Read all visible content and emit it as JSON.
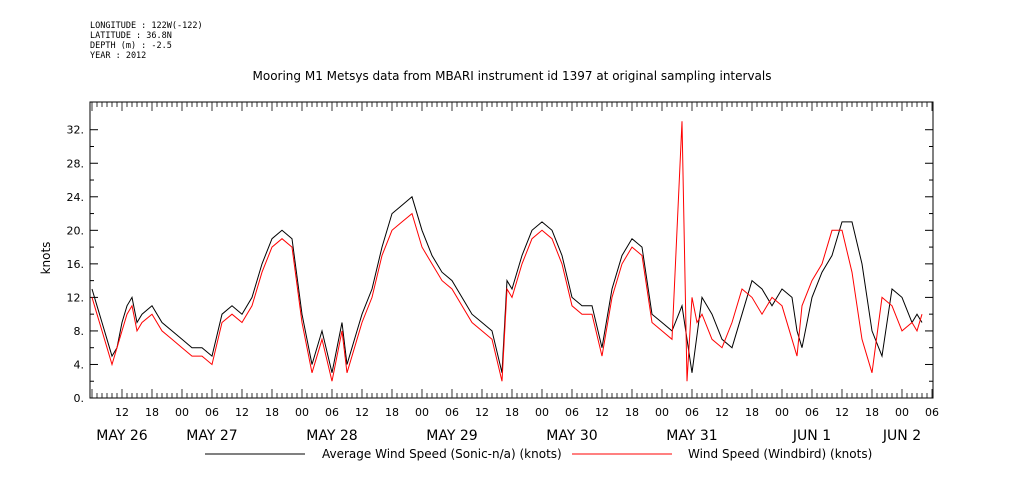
{
  "meta": {
    "longitude": "LONGITUDE : 122W(-122)",
    "latitude": "LATITUDE : 36.8N",
    "depth": "DEPTH (m) : -2.5",
    "year": "YEAR : 2012"
  },
  "chart_data": {
    "type": "line",
    "title": "Mooring M1 Metsys data from MBARI instrument id 1397 at original sampling intervals",
    "ylabel": "knots",
    "xlabel": "",
    "ylim": [
      0,
      34
    ],
    "xlim": [
      0,
      166
    ],
    "x_unit_note": "hours after MAY 26 06:00",
    "y_ticks": [
      0,
      4,
      8,
      12,
      16,
      20,
      24,
      28,
      32
    ],
    "y_tick_labels": [
      "0.",
      "4.",
      "8.",
      "12.",
      "16.",
      "20.",
      "24.",
      "28.",
      "32."
    ],
    "x_hour_ticks": [
      {
        "label": "12",
        "x": 6
      },
      {
        "label": "18",
        "x": 12
      },
      {
        "label": "00",
        "x": 18
      },
      {
        "label": "06",
        "x": 24
      },
      {
        "label": "12",
        "x": 30
      },
      {
        "label": "18",
        "x": 36
      },
      {
        "label": "00",
        "x": 42
      },
      {
        "label": "06",
        "x": 48
      },
      {
        "label": "12",
        "x": 54
      },
      {
        "label": "18",
        "x": 60
      },
      {
        "label": "00",
        "x": 66
      },
      {
        "label": "06",
        "x": 72
      },
      {
        "label": "12",
        "x": 78
      },
      {
        "label": "18",
        "x": 84
      },
      {
        "label": "00",
        "x": 90
      },
      {
        "label": "06",
        "x": 96
      },
      {
        "label": "12",
        "x": 102
      },
      {
        "label": "18",
        "x": 108
      },
      {
        "label": "00",
        "x": 114
      },
      {
        "label": "06",
        "x": 120
      },
      {
        "label": "12",
        "x": 126
      },
      {
        "label": "18",
        "x": 132
      },
      {
        "label": "00",
        "x": 138
      },
      {
        "label": "06",
        "x": 144
      },
      {
        "label": "12",
        "x": 150
      },
      {
        "label": "18",
        "x": 156
      },
      {
        "label": "00",
        "x": 162
      },
      {
        "label": "06",
        "x": 168
      }
    ],
    "x_day_labels": [
      {
        "label": "MAY 26",
        "x": 6
      },
      {
        "label": "MAY 27",
        "x": 24
      },
      {
        "label": "MAY 28",
        "x": 48
      },
      {
        "label": "MAY 29",
        "x": 72
      },
      {
        "label": "MAY 30",
        "x": 96
      },
      {
        "label": "MAY 31",
        "x": 120
      },
      {
        "label": "JUN  1",
        "x": 144
      },
      {
        "label": "JUN  2",
        "x": 162
      }
    ],
    "legend": [
      {
        "name": "Average Wind Speed (Sonic-n/a) (knots)",
        "color": "#000000"
      },
      {
        "name": "Wind Speed (Windbird) (knots)",
        "color": "#ff0000"
      }
    ],
    "series": [
      {
        "name": "Average Wind Speed (Sonic-n/a) (knots)",
        "color": "#000000",
        "x": [
          0,
          1,
          2,
          3,
          4,
          5,
          6,
          7,
          8,
          9,
          10,
          12,
          14,
          16,
          18,
          20,
          22,
          24,
          26,
          28,
          30,
          32,
          34,
          36,
          38,
          40,
          42,
          44,
          46,
          48,
          50,
          51,
          52,
          53,
          54,
          56,
          58,
          60,
          62,
          64,
          66,
          68,
          70,
          72,
          74,
          76,
          78,
          80,
          82,
          83,
          84,
          86,
          88,
          90,
          92,
          94,
          96,
          98,
          100,
          102,
          104,
          106,
          108,
          110,
          112,
          114,
          116,
          118,
          120,
          122,
          124,
          126,
          128,
          130,
          132,
          134,
          136,
          138,
          140,
          141,
          142,
          144,
          146,
          148,
          150,
          152,
          154,
          156,
          158,
          160,
          162,
          164,
          165,
          166
        ],
        "values": [
          13,
          11,
          9,
          7,
          5,
          6,
          9,
          11,
          12,
          9,
          10,
          11,
          9,
          8,
          7,
          6,
          6,
          5,
          10,
          11,
          10,
          12,
          16,
          19,
          20,
          19,
          10,
          4,
          8,
          3,
          9,
          4,
          6,
          8,
          10,
          13,
          18,
          22,
          23,
          24,
          20,
          17,
          15,
          14,
          12,
          10,
          9,
          8,
          3,
          14,
          13,
          17,
          20,
          21,
          20,
          17,
          12,
          11,
          11,
          6,
          13,
          17,
          19,
          18,
          10,
          9,
          8,
          11,
          3,
          12,
          10,
          7,
          6,
          10,
          14,
          13,
          11,
          13,
          12,
          8,
          6,
          12,
          15,
          17,
          21,
          21,
          16,
          8,
          5,
          13,
          12,
          9,
          10,
          9
        ]
      },
      {
        "name": "Wind Speed (Windbird) (knots)",
        "color": "#ff0000",
        "x": [
          0,
          1,
          2,
          3,
          4,
          5,
          6,
          7,
          8,
          9,
          10,
          12,
          14,
          16,
          18,
          20,
          22,
          24,
          26,
          28,
          30,
          32,
          34,
          36,
          38,
          40,
          42,
          44,
          46,
          48,
          50,
          51,
          52,
          53,
          54,
          56,
          58,
          60,
          62,
          64,
          66,
          68,
          70,
          72,
          74,
          76,
          78,
          80,
          82,
          83,
          84,
          86,
          88,
          90,
          92,
          94,
          96,
          98,
          100,
          102,
          104,
          106,
          108,
          110,
          112,
          114,
          116,
          118,
          119,
          120,
          121,
          122,
          124,
          126,
          128,
          130,
          132,
          134,
          136,
          138,
          140,
          141,
          142,
          144,
          146,
          148,
          150,
          152,
          154,
          156,
          158,
          160,
          162,
          164,
          165,
          166
        ],
        "values": [
          12,
          10,
          8,
          6,
          4,
          6,
          8,
          10,
          11,
          8,
          9,
          10,
          8,
          7,
          6,
          5,
          5,
          4,
          9,
          10,
          9,
          11,
          15,
          18,
          19,
          18,
          9,
          3,
          7,
          2,
          8,
          3,
          5,
          7,
          9,
          12,
          17,
          20,
          21,
          22,
          18,
          16,
          14,
          13,
          11,
          9,
          8,
          7,
          2,
          13,
          12,
          16,
          19,
          20,
          19,
          16,
          11,
          10,
          10,
          5,
          12,
          16,
          18,
          17,
          9,
          8,
          7,
          33,
          2,
          12,
          9,
          10,
          7,
          6,
          9,
          13,
          12,
          10,
          12,
          11,
          7,
          5,
          11,
          14,
          16,
          20,
          20,
          15,
          7,
          3,
          12,
          11,
          8,
          9,
          8,
          10
        ]
      }
    ],
    "grid": false,
    "legend_position": "bottom"
  }
}
